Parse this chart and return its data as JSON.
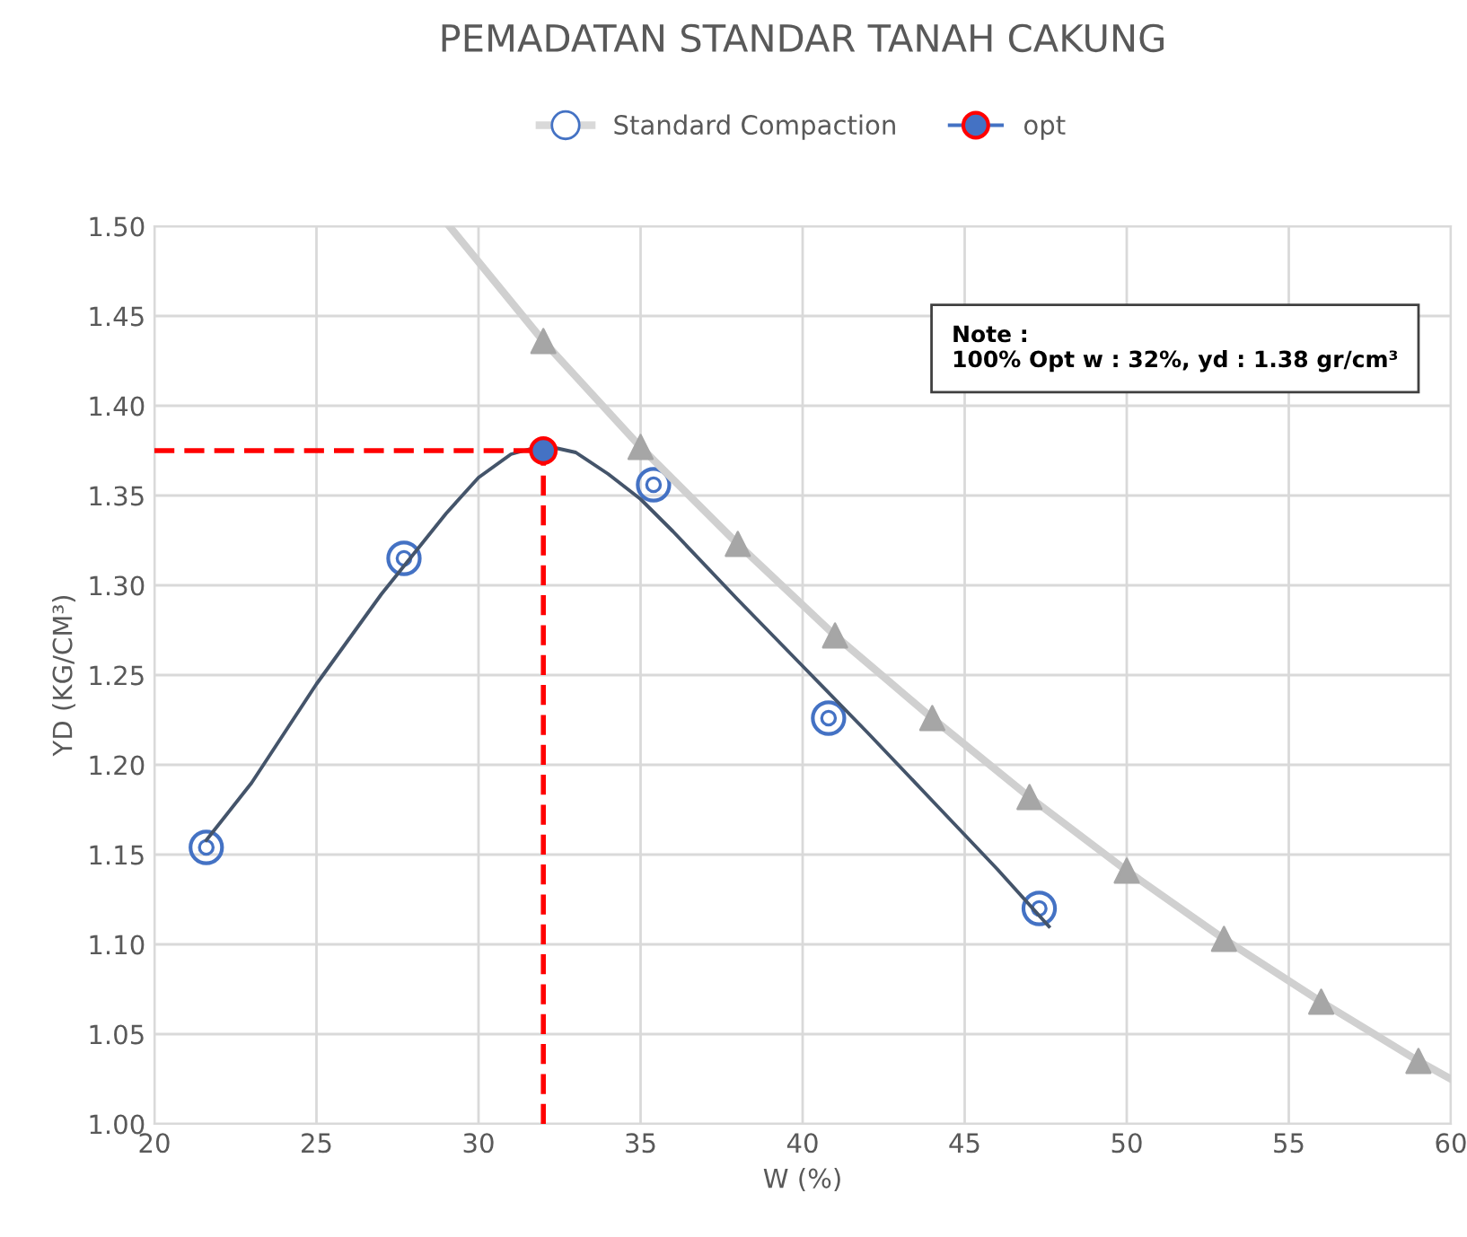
{
  "chart_data": {
    "type": "scatter",
    "title": "PEMADATAN STANDAR TANAH CAKUNG",
    "xlabel": "W (%)",
    "ylabel": "YD (KG/CM³)",
    "xlim": [
      20,
      60
    ],
    "xticks": [
      20,
      25,
      30,
      35,
      40,
      45,
      50,
      55,
      60
    ],
    "ylim": [
      1.0,
      1.5
    ],
    "yticks": [
      {
        "value": 1.0,
        "label": "1.00"
      },
      {
        "value": 1.05,
        "label": "1.05"
      },
      {
        "value": 1.1,
        "label": "1.10"
      },
      {
        "value": 1.15,
        "label": "1.15"
      },
      {
        "value": 1.2,
        "label": "1.20"
      },
      {
        "value": 1.25,
        "label": "1.25"
      },
      {
        "value": 1.3,
        "label": "1.30"
      },
      {
        "value": 1.35,
        "label": "1.35"
      },
      {
        "value": 1.4,
        "label": "1.40"
      },
      {
        "value": 1.45,
        "label": "1.45"
      },
      {
        "value": 1.5,
        "label": "1.50"
      }
    ],
    "grid": true,
    "legend": "top",
    "series": [
      {
        "type": "line",
        "color": "#d0d0d0",
        "marker": "none",
        "line_style": "solid",
        "x": [
          29.1,
          32,
          35,
          38,
          41,
          44,
          47,
          50,
          53,
          56,
          59,
          60
        ],
        "values": [
          1.5,
          1.436,
          1.377,
          1.323,
          1.272,
          1.226,
          1.182,
          1.141,
          1.103,
          1.068,
          1.035,
          1.025
        ]
      },
      {
        "color": "#a6a6a6",
        "marker": "triangle",
        "x": [
          32,
          35,
          38,
          41,
          44,
          47,
          50,
          53,
          56,
          59
        ],
        "values": [
          1.436,
          1.377,
          1.323,
          1.272,
          1.226,
          1.182,
          1.141,
          1.103,
          1.068,
          1.035
        ]
      },
      {
        "type": "line",
        "color": "#44546a",
        "marker": "none",
        "line_style": "solid",
        "x": [
          21.6,
          23,
          25,
          27,
          29,
          30,
          31,
          32,
          33,
          34,
          35,
          36,
          38,
          40,
          42,
          44,
          46,
          47.6
        ],
        "values": [
          1.158,
          1.19,
          1.245,
          1.295,
          1.34,
          1.36,
          1.373,
          1.378,
          1.374,
          1.362,
          1.348,
          1.33,
          1.292,
          1.255,
          1.218,
          1.18,
          1.142,
          1.11
        ]
      },
      {
        "name": "Standard Compaction",
        "color": "#4472c4",
        "marker": "circle",
        "x": [
          21.6,
          27.7,
          35.4,
          40.8,
          47.3
        ],
        "values": [
          1.154,
          1.315,
          1.356,
          1.226,
          1.12
        ]
      },
      {
        "type": "line",
        "color": "#ff0000",
        "marker": "none",
        "line_style": "dashed",
        "x": [
          20,
          32
        ],
        "values": [
          1.375,
          1.375
        ]
      },
      {
        "type": "line",
        "color": "#ff0000",
        "marker": "none",
        "line_style": "dashed",
        "x": [
          32,
          32
        ],
        "values": [
          1.0,
          1.375
        ]
      },
      {
        "type": "line",
        "name": "opt",
        "color": "#4472c4",
        "marker": "circle",
        "line_style": "solid",
        "x": [
          32
        ],
        "values": [
          1.375
        ]
      }
    ],
    "annotations": [
      "Note :\n100% Opt w : 32%, yd : 1.38 gr/cm³"
    ]
  }
}
